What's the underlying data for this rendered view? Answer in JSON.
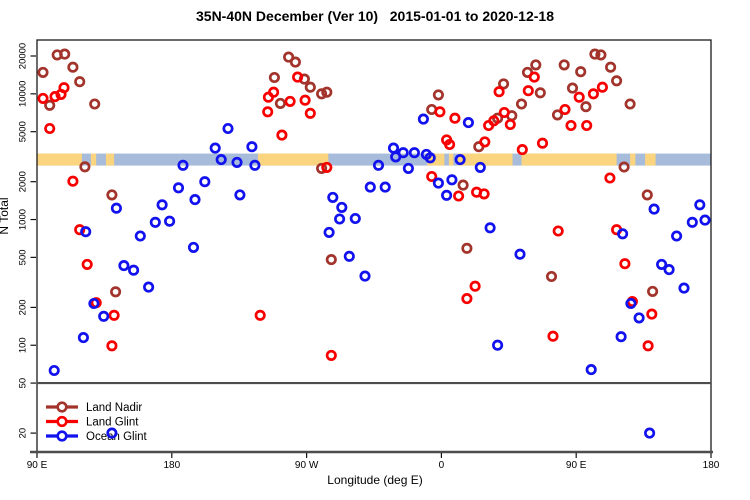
{
  "title": "35N-40N December (Ver 10)   2015-01-01 to 2020-12-18",
  "axes": {
    "y": {
      "label": "N Total",
      "scale": "log",
      "tick_values": [
        20000,
        10000,
        5000,
        2000,
        1000,
        500,
        200,
        100,
        50,
        20
      ],
      "tick_labels": [
        "20000",
        "10000",
        "5000",
        "2000",
        "1000",
        "500",
        "200",
        "100",
        "50",
        "20"
      ]
    },
    "x": {
      "label": "Longitude (deg E)",
      "range_deg": [
        90,
        540
      ],
      "tick_values": [
        90,
        180,
        270,
        360,
        450,
        540
      ],
      "tick_labels": [
        "90 E",
        "180",
        "90 W",
        "0",
        "90 E",
        "180"
      ]
    }
  },
  "legend": {
    "items": [
      {
        "label": "Land Nadir",
        "color": "#A2342C"
      },
      {
        "label": "Land Glint",
        "color": "#F80000"
      },
      {
        "label": "Ocean Glint",
        "color": "#1212EE"
      }
    ]
  },
  "map_strip": {
    "description": "thin land/ocean world-map band drawn across the plot at N=3000",
    "center_value": 3000,
    "ocean_color": "#A7BBDB",
    "land_color": "#FAD47E",
    "land_segments_deg": [
      [
        90,
        120
      ],
      [
        126,
        129.5
      ],
      [
        136,
        141.5
      ],
      [
        237.5,
        284.5
      ],
      [
        350.5,
        362
      ],
      [
        365,
        368
      ],
      [
        371,
        407.5
      ],
      [
        413.5,
        477
      ],
      [
        486,
        489.5
      ],
      [
        496,
        503
      ]
    ]
  },
  "chart_data": {
    "type": "scatter",
    "title": "35N-40N December (Ver 10) 2015-01-01 to 2020-12-18",
    "xlabel": "Longitude (deg E)",
    "ylabel": "N Total",
    "x_unit": "continuous longitude deg E, 90 to 540 (wraps through 180, 90W, 0, 90E, 180)",
    "ylim": [
      15,
      30000
    ],
    "y_scale": "log",
    "grid": false,
    "legend_position": "bottom-left panel",
    "series": [
      {
        "name": "Land Nadir",
        "color": "#A2342C",
        "points": [
          [
            103.5,
            20400
          ],
          [
            108.5,
            20700
          ],
          [
            114,
            16300
          ],
          [
            94,
            14800
          ],
          [
            118.5,
            12500
          ],
          [
            98.5,
            8100
          ],
          [
            128.5,
            8300
          ],
          [
            122,
            2630
          ],
          [
            140,
            1570
          ],
          [
            142.5,
            266
          ],
          [
            258,
            19600
          ],
          [
            262.5,
            17900
          ],
          [
            248.5,
            13500
          ],
          [
            268.5,
            13100
          ],
          [
            272.5,
            11300
          ],
          [
            280,
            10000
          ],
          [
            283.5,
            10300
          ],
          [
            252.5,
            8400
          ],
          [
            280,
            2550
          ],
          [
            358,
            9800
          ],
          [
            353.5,
            7500
          ],
          [
            385,
            3800
          ],
          [
            374.5,
            1880
          ],
          [
            377,
            590
          ],
          [
            286.5,
            480
          ],
          [
            462.5,
            20700
          ],
          [
            466.5,
            20400
          ],
          [
            423,
            17000
          ],
          [
            442,
            17000
          ],
          [
            417.5,
            14800
          ],
          [
            453,
            15000
          ],
          [
            473,
            16300
          ],
          [
            401.5,
            12000
          ],
          [
            426,
            10200
          ],
          [
            447.5,
            11100
          ],
          [
            477,
            12700
          ],
          [
            413.5,
            8300
          ],
          [
            456.5,
            7900
          ],
          [
            397.5,
            6400
          ],
          [
            407,
            6700
          ],
          [
            437.5,
            6800
          ],
          [
            486,
            8300
          ],
          [
            482,
            2620
          ],
          [
            497.5,
            1570
          ],
          [
            433.5,
            352
          ],
          [
            501,
            268
          ]
        ]
      },
      {
        "name": "Land Glint",
        "color": "#F80000",
        "points": [
          [
            108,
            11200
          ],
          [
            94,
            9200
          ],
          [
            102,
            9500
          ],
          [
            106,
            9900
          ],
          [
            98.5,
            5300
          ],
          [
            114,
            2020
          ],
          [
            118.5,
            830
          ],
          [
            123.5,
            440
          ],
          [
            129.5,
            218
          ],
          [
            141.5,
            173
          ],
          [
            140,
            99
          ],
          [
            264,
            13600
          ],
          [
            248,
            10300
          ],
          [
            244.5,
            9400
          ],
          [
            259,
            8700
          ],
          [
            269,
            8900
          ],
          [
            244,
            7200
          ],
          [
            272.5,
            7000
          ],
          [
            253.5,
            4700
          ],
          [
            283.5,
            2600
          ],
          [
            239,
            173
          ],
          [
            286.5,
            83
          ],
          [
            359,
            7200
          ],
          [
            369,
            6400
          ],
          [
            363.5,
            4300
          ],
          [
            365.5,
            3950
          ],
          [
            389,
            4150
          ],
          [
            353.5,
            2200
          ],
          [
            371.5,
            1540
          ],
          [
            383.5,
            1650
          ],
          [
            388.5,
            1600
          ],
          [
            382.5,
            295
          ],
          [
            377,
            235
          ],
          [
            422,
            13600
          ],
          [
            398.5,
            10400
          ],
          [
            418,
            10600
          ],
          [
            467.5,
            11300
          ],
          [
            461.5,
            10000
          ],
          [
            452,
            9400
          ],
          [
            402,
            7100
          ],
          [
            395,
            6100
          ],
          [
            406,
            5700
          ],
          [
            391.5,
            5600
          ],
          [
            442.5,
            7500
          ],
          [
            446.5,
            5600
          ],
          [
            457,
            5600
          ],
          [
            414,
            3600
          ],
          [
            427.5,
            4050
          ],
          [
            472.5,
            2140
          ],
          [
            438,
            810
          ],
          [
            477,
            830
          ],
          [
            482.5,
            445
          ],
          [
            487.5,
            223
          ],
          [
            500.5,
            177
          ],
          [
            434.5,
            118
          ],
          [
            498,
            99
          ]
        ]
      },
      {
        "name": "Ocean Glint",
        "color": "#1212EE",
        "points": [
          [
            217.5,
            5300
          ],
          [
            209,
            3700
          ],
          [
            233.5,
            3800
          ],
          [
            213,
            3000
          ],
          [
            223.5,
            2850
          ],
          [
            235.5,
            2700
          ],
          [
            187.5,
            2700
          ],
          [
            184.5,
            1790
          ],
          [
            202,
            2000
          ],
          [
            195.5,
            1440
          ],
          [
            225.5,
            1570
          ],
          [
            173.5,
            1310
          ],
          [
            143,
            1230
          ],
          [
            122.5,
            800
          ],
          [
            169,
            950
          ],
          [
            178.5,
            970
          ],
          [
            159,
            740
          ],
          [
            194.5,
            600
          ],
          [
            148,
            430
          ],
          [
            154.5,
            395
          ],
          [
            164.5,
            290
          ],
          [
            128,
            215
          ],
          [
            134.5,
            170
          ],
          [
            121,
            115
          ],
          [
            101.5,
            63
          ],
          [
            140,
            20
          ],
          [
            348,
            6300
          ],
          [
            378,
            5900
          ],
          [
            328,
            3700
          ],
          [
            329.5,
            3150
          ],
          [
            334.5,
            3400
          ],
          [
            342,
            3400
          ],
          [
            350,
            3300
          ],
          [
            352.5,
            3100
          ],
          [
            318,
            2700
          ],
          [
            338,
            2550
          ],
          [
            372.5,
            3000
          ],
          [
            386,
            2600
          ],
          [
            358,
            1950
          ],
          [
            367,
            2070
          ],
          [
            312.5,
            1810
          ],
          [
            322.5,
            1810
          ],
          [
            363.5,
            1560
          ],
          [
            287.5,
            1500
          ],
          [
            293.5,
            1250
          ],
          [
            292,
            1010
          ],
          [
            302.5,
            1020
          ],
          [
            285,
            790
          ],
          [
            298.5,
            510
          ],
          [
            309,
            355
          ],
          [
            502,
            1210
          ],
          [
            532.5,
            1310
          ],
          [
            392.5,
            860
          ],
          [
            481,
            770
          ],
          [
            517,
            740
          ],
          [
            527.5,
            950
          ],
          [
            536,
            990
          ],
          [
            412.5,
            530
          ],
          [
            507,
            440
          ],
          [
            512,
            400
          ],
          [
            522,
            285
          ],
          [
            486.5,
            215
          ],
          [
            492,
            165
          ],
          [
            480,
            117
          ],
          [
            397.5,
            100
          ],
          [
            460,
            64
          ],
          [
            499,
            20
          ]
        ]
      }
    ]
  }
}
